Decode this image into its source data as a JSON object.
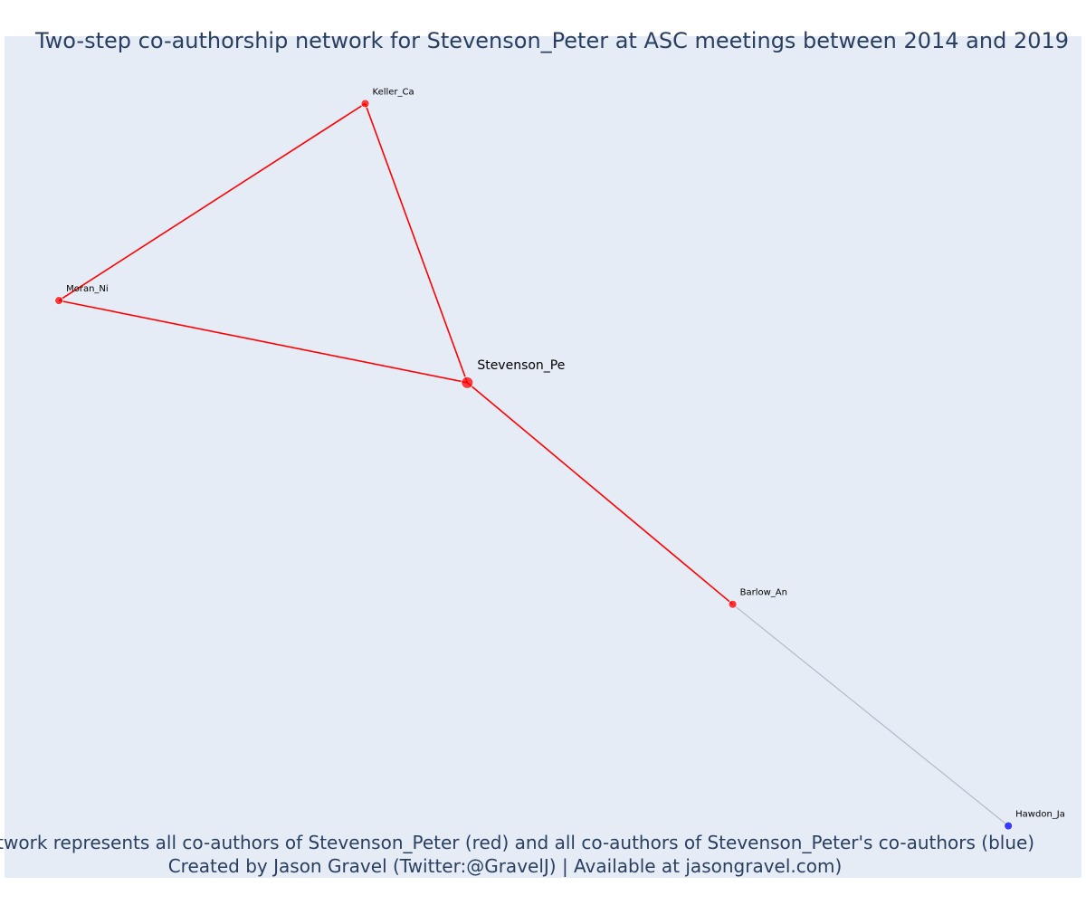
{
  "title": "Two-step co-authorship network for Stevenson_Peter at ASC meetings between 2014 and 2019",
  "caption": [
    "Network represents all co-authors of Stevenson_Peter (red) and all co-authors of Stevenson_Peter's co-authors (blue)",
    "Created by Jason Gravel (Twitter:@GravelJ) | Available at jasongravel.com)"
  ],
  "colors": {
    "plot_background": "#e5ecf6",
    "direct_coauthor": "#ff0000",
    "second_step_coauthor": "#0000ff",
    "direct_edge": "#ff0000",
    "second_step_edge": "#b4b8c8",
    "text": "#2a3f5f"
  },
  "chart_data": {
    "type": "network",
    "x_range": [
      0,
      1
    ],
    "y_range": [
      0,
      1
    ],
    "nodes": [
      {
        "id": "Stevenson_Pe",
        "group": "ego",
        "x": 0.44,
        "y": 0.6
      },
      {
        "id": "Keller_Ca",
        "group": "direct",
        "x": 0.34,
        "y": 0.94
      },
      {
        "id": "Moran_Ni",
        "group": "direct",
        "x": 0.04,
        "y": 0.7
      },
      {
        "id": "Barlow_An",
        "group": "direct",
        "x": 0.7,
        "y": 0.33
      },
      {
        "id": "Hawdon_Ja",
        "group": "second_step",
        "x": 0.97,
        "y": 0.06
      }
    ],
    "edges": [
      {
        "source": "Stevenson_Pe",
        "target": "Keller_Ca",
        "type": "direct"
      },
      {
        "source": "Stevenson_Pe",
        "target": "Moran_Ni",
        "type": "direct"
      },
      {
        "source": "Keller_Ca",
        "target": "Moran_Ni",
        "type": "direct"
      },
      {
        "source": "Stevenson_Pe",
        "target": "Barlow_An",
        "type": "direct"
      },
      {
        "source": "Barlow_An",
        "target": "Hawdon_Ja",
        "type": "second_step"
      }
    ]
  }
}
